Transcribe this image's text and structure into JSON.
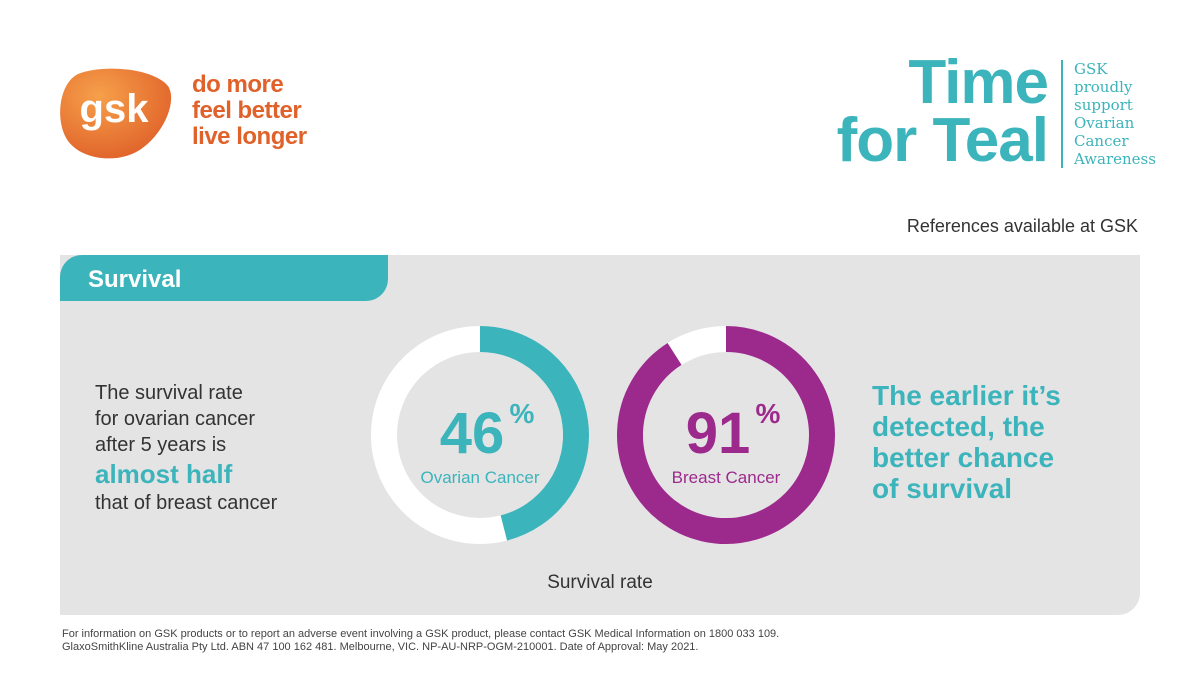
{
  "brand": {
    "logo_text": "gsk",
    "tagline": [
      "do more",
      "feel better",
      "live longer"
    ],
    "logo_color": "#e0622a",
    "accent": "#3cb4bb"
  },
  "campaign": {
    "title_lines": [
      "Time",
      "for Teal"
    ],
    "note_lines": [
      "GSK",
      "proudly",
      "support",
      "Ovarian",
      "Cancer",
      "Awareness"
    ]
  },
  "references": "References available at GSK",
  "panel": {
    "tab_label": "Survival",
    "left_lines": [
      "The survival rate",
      "for ovarian cancer",
      "after 5 years is"
    ],
    "left_emphasis": "almost half",
    "left_last": "that of breast cancer",
    "right_lines": [
      "The earlier it’s",
      "detected, the",
      "better chance",
      "of survival"
    ]
  },
  "chart_data": {
    "type": "pie",
    "xlabel": "Survival rate",
    "series": [
      {
        "name": "Ovarian Cancer",
        "value": 46,
        "label": "46",
        "unit": "%",
        "color": "#3cb4bb",
        "remainder_color": "#ffffff"
      },
      {
        "name": "Breast Cancer",
        "value": 91,
        "label": "91",
        "unit": "%",
        "color": "#9c2a8c",
        "remainder_color": "#ffffff"
      }
    ]
  },
  "footer": [
    "For information on GSK products or to report an adverse event involving a GSK product, please contact GSK Medical Information on 1800 033 109.",
    "GlaxoSmithKline Australia Pty Ltd. ABN 47 100 162 481. Melbourne, VIC. NP-AU-NRP-OGM-210001. Date of Approval: May 2021."
  ]
}
